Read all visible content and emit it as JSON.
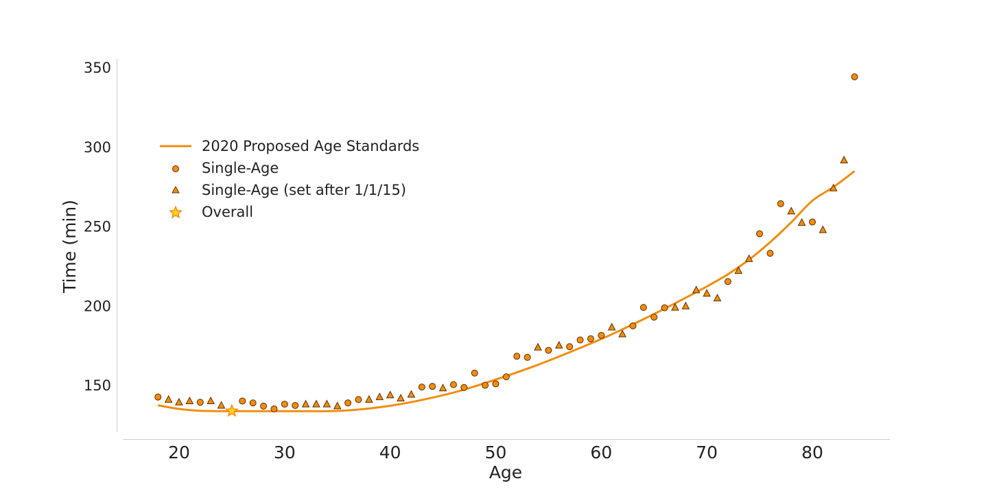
{
  "colors": {
    "line": "#F28C0F",
    "marker_fill": "#F28C0F",
    "marker_edge": "#5A2E00",
    "star_fill": "#FFD21F",
    "star_edge": "#F28C0F",
    "axis": "#CCCCCC"
  },
  "chart_data": {
    "type": "scatter",
    "xlabel": "Age",
    "ylabel": "Time (min)",
    "xlim": [
      15,
      85
    ],
    "ylim": [
      120,
      355
    ],
    "xticks": [
      20,
      30,
      40,
      50,
      60,
      70,
      80
    ],
    "yticks": [
      150,
      200,
      250,
      300,
      350
    ],
    "grid": false,
    "legend_position": "upper-left",
    "legend": [
      {
        "label": "2020 Proposed Age Standards",
        "marker": "line"
      },
      {
        "label": "Single-Age",
        "marker": "circle"
      },
      {
        "label": "Single-Age (set after 1/1/15)",
        "marker": "triangle"
      },
      {
        "label": "Overall",
        "marker": "star"
      }
    ],
    "series": [
      {
        "name": "2020 Proposed Age Standards",
        "kind": "line",
        "x": [
          18,
          20,
          22,
          24,
          26,
          28,
          30,
          32,
          34,
          36,
          38,
          40,
          42,
          44,
          46,
          48,
          50,
          52,
          54,
          56,
          58,
          60,
          62,
          64,
          66,
          68,
          70,
          72,
          74,
          76,
          78,
          80,
          82,
          84
        ],
        "y": [
          137.6,
          135.3,
          134.1,
          133.9,
          133.9,
          133.9,
          133.9,
          133.9,
          133.9,
          134.4,
          135.6,
          137.3,
          139.6,
          142.4,
          145.6,
          149.5,
          153.8,
          158.3,
          163.1,
          168.3,
          173.7,
          179.3,
          185.4,
          191.8,
          198.4,
          205.3,
          212.4,
          220.1,
          229.3,
          240.3,
          252.8,
          266.4,
          275.0,
          285.0
        ]
      },
      {
        "name": "Single-Age",
        "kind": "circle",
        "x": [
          18,
          22,
          26,
          27,
          28,
          29,
          30,
          31,
          36,
          37,
          43,
          44,
          46,
          47,
          48,
          49,
          50,
          51,
          52,
          53,
          55,
          57,
          58,
          59,
          60,
          63,
          64,
          65,
          66,
          72,
          75,
          76,
          77,
          80,
          84
        ],
        "y": [
          142.8,
          139.5,
          140.3,
          139.1,
          137.1,
          135.3,
          138.3,
          137.5,
          139.1,
          141.2,
          149.1,
          149.5,
          150.6,
          148.8,
          157.9,
          150.2,
          151.1,
          155.5,
          168.5,
          167.8,
          172.2,
          174.5,
          178.7,
          179.5,
          181.6,
          187.6,
          199.2,
          193.1,
          199.0,
          215.5,
          245.6,
          233.3,
          264.5,
          253.0,
          344.4
        ]
      },
      {
        "name": "Single-Age (set after 1/1/15)",
        "kind": "triangle",
        "x": [
          19,
          20,
          21,
          23,
          24,
          32,
          33,
          34,
          35,
          38,
          39,
          40,
          41,
          42,
          45,
          54,
          56,
          61,
          62,
          67,
          68,
          69,
          70,
          71,
          73,
          74,
          78,
          79,
          81,
          82,
          83
        ],
        "y": [
          141.2,
          139.5,
          140.3,
          140.3,
          137.5,
          138.3,
          138.3,
          138.3,
          137.1,
          141.2,
          142.8,
          144.0,
          142.0,
          144.4,
          148.4,
          174.1,
          175.3,
          186.7,
          182.4,
          199.2,
          200.0,
          210.1,
          208.0,
          205.0,
          222.3,
          229.8,
          259.8,
          252.6,
          248.0,
          274.3,
          291.9
        ]
      },
      {
        "name": "Overall",
        "kind": "star",
        "x": [
          25
        ],
        "y": [
          134.0
        ]
      }
    ]
  }
}
